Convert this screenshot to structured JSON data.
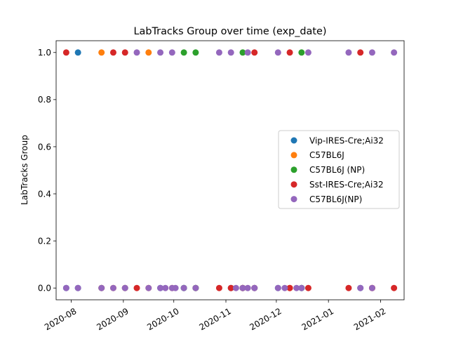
{
  "chart_data": {
    "type": "scatter",
    "title": "LabTracks Group over time (exp_date)",
    "xlabel": "",
    "ylabel": "LabTracks Group",
    "xlim": [
      "2020-07-23",
      "2021-02-15"
    ],
    "ylim": [
      -0.05,
      1.05
    ],
    "x_ticks": [
      {
        "date": "2020-08-01",
        "label": "2020-08"
      },
      {
        "date": "2020-09-01",
        "label": "2020-09"
      },
      {
        "date": "2020-10-01",
        "label": "2020-10"
      },
      {
        "date": "2020-11-01",
        "label": "2020-11"
      },
      {
        "date": "2020-12-01",
        "label": "2020-12"
      },
      {
        "date": "2021-01-01",
        "label": "2021-01"
      },
      {
        "date": "2021-02-01",
        "label": "2021-02"
      }
    ],
    "y_ticks": [
      {
        "value": 0.0,
        "label": "0.0"
      },
      {
        "value": 0.2,
        "label": "0.2"
      },
      {
        "value": 0.4,
        "label": "0.4"
      },
      {
        "value": 0.6,
        "label": "0.6"
      },
      {
        "value": 0.8,
        "label": "0.8"
      },
      {
        "value": 1.0,
        "label": "1.0"
      }
    ],
    "grid": false,
    "legend_position": "right",
    "series": [
      {
        "name": "Vip-IRES-Cre;Ai32",
        "color": "#1f77b4",
        "points": [
          {
            "x": "2020-07-29",
            "y": 0
          },
          {
            "x": "2020-08-05",
            "y": 1
          },
          {
            "x": "2020-08-05",
            "y": 0
          },
          {
            "x": "2020-08-19",
            "y": 0
          },
          {
            "x": "2020-09-02",
            "y": 0
          },
          {
            "x": "2020-09-23",
            "y": 0
          },
          {
            "x": "2020-10-07",
            "y": 0
          },
          {
            "x": "2020-10-14",
            "y": 0
          },
          {
            "x": "2020-11-04",
            "y": 0
          },
          {
            "x": "2020-11-18",
            "y": 0
          },
          {
            "x": "2020-12-02",
            "y": 0
          },
          {
            "x": "2020-12-16",
            "y": 0
          },
          {
            "x": "2021-01-20",
            "y": 0
          }
        ]
      },
      {
        "name": "C57BL6J",
        "color": "#ff7f0e",
        "points": [
          {
            "x": "2020-08-19",
            "y": 1
          },
          {
            "x": "2020-09-16",
            "y": 1
          },
          {
            "x": "2020-08-19",
            "y": 0
          },
          {
            "x": "2020-08-26",
            "y": 0
          },
          {
            "x": "2020-09-02",
            "y": 0
          },
          {
            "x": "2020-09-16",
            "y": 0
          },
          {
            "x": "2020-09-30",
            "y": 0
          },
          {
            "x": "2020-10-14",
            "y": 0
          },
          {
            "x": "2020-11-11",
            "y": 0
          },
          {
            "x": "2020-12-09",
            "y": 0
          },
          {
            "x": "2021-01-27",
            "y": 0
          }
        ]
      },
      {
        "name": "C57BL6J (NP)",
        "color": "#2ca02c",
        "points": [
          {
            "x": "2020-10-07",
            "y": 1
          },
          {
            "x": "2020-10-14",
            "y": 1
          },
          {
            "x": "2020-11-11",
            "y": 1
          },
          {
            "x": "2020-12-16",
            "y": 1
          },
          {
            "x": "2020-10-07",
            "y": 0
          },
          {
            "x": "2020-10-14",
            "y": 0
          },
          {
            "x": "2020-11-11",
            "y": 0
          },
          {
            "x": "2020-12-16",
            "y": 0
          }
        ]
      },
      {
        "name": "Sst-IRES-Cre;Ai32",
        "color": "#d62728",
        "points": [
          {
            "x": "2020-07-29",
            "y": 1
          },
          {
            "x": "2020-08-26",
            "y": 1
          },
          {
            "x": "2020-09-02",
            "y": 1
          },
          {
            "x": "2020-11-18",
            "y": 1
          },
          {
            "x": "2020-12-09",
            "y": 1
          },
          {
            "x": "2021-01-20",
            "y": 1
          },
          {
            "x": "2020-09-09",
            "y": 0
          },
          {
            "x": "2020-10-28",
            "y": 0
          },
          {
            "x": "2020-11-04",
            "y": 0
          },
          {
            "x": "2020-11-11",
            "y": 0
          },
          {
            "x": "2020-11-18",
            "y": 0
          },
          {
            "x": "2020-12-09",
            "y": 0
          },
          {
            "x": "2020-12-20",
            "y": 0
          },
          {
            "x": "2021-01-13",
            "y": 0
          },
          {
            "x": "2021-01-27",
            "y": 0
          },
          {
            "x": "2021-02-09",
            "y": 0
          }
        ]
      },
      {
        "name": "C57BL6J(NP)",
        "color": "#9467bd",
        "points": [
          {
            "x": "2020-09-09",
            "y": 1
          },
          {
            "x": "2020-09-23",
            "y": 1
          },
          {
            "x": "2020-09-30",
            "y": 1
          },
          {
            "x": "2020-10-28",
            "y": 1
          },
          {
            "x": "2020-11-04",
            "y": 1
          },
          {
            "x": "2020-11-14",
            "y": 1
          },
          {
            "x": "2020-12-02",
            "y": 1
          },
          {
            "x": "2020-12-20",
            "y": 1
          },
          {
            "x": "2021-01-13",
            "y": 1
          },
          {
            "x": "2021-01-27",
            "y": 1
          },
          {
            "x": "2021-02-09",
            "y": 1
          },
          {
            "x": "2020-07-29",
            "y": 0
          },
          {
            "x": "2020-08-05",
            "y": 0
          },
          {
            "x": "2020-08-19",
            "y": 0
          },
          {
            "x": "2020-08-26",
            "y": 0
          },
          {
            "x": "2020-09-02",
            "y": 0
          },
          {
            "x": "2020-09-16",
            "y": 0
          },
          {
            "x": "2020-09-23",
            "y": 0
          },
          {
            "x": "2020-09-26",
            "y": 0
          },
          {
            "x": "2020-09-30",
            "y": 0
          },
          {
            "x": "2020-10-02",
            "y": 0
          },
          {
            "x": "2020-10-07",
            "y": 0
          },
          {
            "x": "2020-10-14",
            "y": 0
          },
          {
            "x": "2020-11-07",
            "y": 0
          },
          {
            "x": "2020-11-11",
            "y": 0
          },
          {
            "x": "2020-11-14",
            "y": 0
          },
          {
            "x": "2020-11-18",
            "y": 0
          },
          {
            "x": "2020-12-02",
            "y": 0
          },
          {
            "x": "2020-12-06",
            "y": 0
          },
          {
            "x": "2020-12-13",
            "y": 0
          },
          {
            "x": "2020-12-16",
            "y": 0
          },
          {
            "x": "2021-01-20",
            "y": 0
          },
          {
            "x": "2021-01-27",
            "y": 0
          }
        ]
      }
    ]
  }
}
